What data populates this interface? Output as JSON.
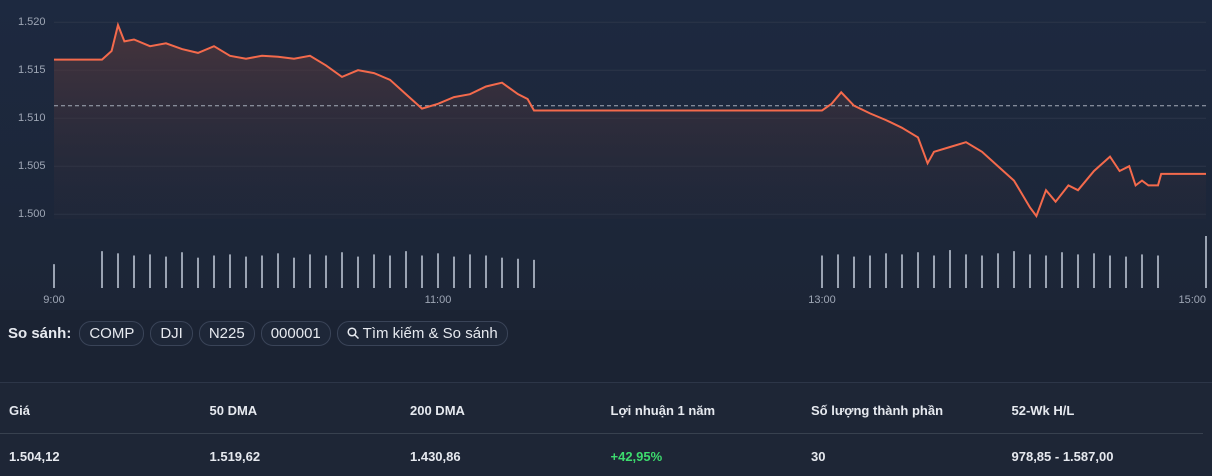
{
  "chart_data": {
    "type": "line",
    "x": [
      "9:00",
      "9:15",
      "9:18",
      "9:20",
      "9:22",
      "9:25",
      "9:30",
      "9:35",
      "9:40",
      "9:45",
      "9:50",
      "9:55",
      "10:00",
      "10:05",
      "10:10",
      "10:15",
      "10:20",
      "10:25",
      "10:30",
      "10:35",
      "10:40",
      "10:45",
      "10:50",
      "10:55",
      "11:00",
      "11:05",
      "11:10",
      "11:15",
      "11:20",
      "11:25",
      "11:28",
      "11:30",
      "13:00",
      "13:03",
      "13:06",
      "13:10",
      "13:15",
      "13:20",
      "13:25",
      "13:30",
      "13:33",
      "13:35",
      "13:40",
      "13:45",
      "13:50",
      "13:55",
      "14:00",
      "14:05",
      "14:07",
      "14:10",
      "14:13",
      "14:17",
      "14:20",
      "14:25",
      "14:30",
      "14:33",
      "14:36",
      "14:38",
      "14:40",
      "14:42",
      "14:45",
      "14:46",
      "15:00"
    ],
    "series": [
      {
        "color": "#f46a4c",
        "values": [
          1.5161,
          1.5161,
          1.517,
          1.5197,
          1.518,
          1.5182,
          1.5175,
          1.5178,
          1.5172,
          1.5168,
          1.5175,
          1.5165,
          1.5162,
          1.5165,
          1.5164,
          1.5162,
          1.5165,
          1.5155,
          1.5143,
          1.515,
          1.5147,
          1.514,
          1.5125,
          1.511,
          1.5115,
          1.5122,
          1.5125,
          1.5133,
          1.5137,
          1.5125,
          1.512,
          1.5108,
          1.5108,
          1.5115,
          1.5127,
          1.5113,
          1.5105,
          1.5098,
          1.509,
          1.508,
          1.5053,
          1.5065,
          1.507,
          1.5075,
          1.5065,
          1.505,
          1.5035,
          1.5007,
          1.4998,
          1.5025,
          1.5013,
          1.503,
          1.5025,
          1.5045,
          1.506,
          1.5045,
          1.505,
          1.503,
          1.5035,
          1.503,
          1.503,
          1.5042,
          1.5042
        ]
      }
    ],
    "reference_line": 1.5113,
    "xlim": [
      "9:00",
      "15:00"
    ],
    "xticks": [
      "9:00",
      "11:00",
      "13:00",
      "15:00"
    ],
    "ylim": [
      1.4995,
      1.522
    ],
    "yticks": [
      {
        "value": 1.5,
        "label": "1.500"
      },
      {
        "value": 1.505,
        "label": "1.505"
      },
      {
        "value": 1.51,
        "label": "1.510"
      },
      {
        "value": 1.515,
        "label": "1.515"
      },
      {
        "value": 1.52,
        "label": "1.520"
      }
    ],
    "grid": true,
    "volume": {
      "color": "#9aa3b2",
      "x": [
        "9:00",
        "9:15",
        "9:20",
        "9:25",
        "9:30",
        "9:35",
        "9:40",
        "9:45",
        "9:50",
        "9:55",
        "10:00",
        "10:05",
        "10:10",
        "10:15",
        "10:20",
        "10:25",
        "10:30",
        "10:35",
        "10:40",
        "10:45",
        "10:50",
        "10:55",
        "11:00",
        "11:05",
        "11:10",
        "11:15",
        "11:20",
        "11:25",
        "11:30",
        "13:00",
        "13:05",
        "13:10",
        "13:15",
        "13:20",
        "13:25",
        "13:30",
        "13:35",
        "13:40",
        "13:45",
        "13:50",
        "13:55",
        "14:00",
        "14:05",
        "14:10",
        "14:15",
        "14:20",
        "14:25",
        "14:30",
        "14:35",
        "14:40",
        "14:45",
        "15:00"
      ],
      "values": [
        22,
        34,
        32,
        30,
        31,
        29,
        33,
        28,
        30,
        31,
        29,
        30,
        32,
        28,
        31,
        30,
        33,
        29,
        31,
        30,
        34,
        30,
        32,
        29,
        31,
        30,
        28,
        27,
        26,
        30,
        31,
        29,
        30,
        32,
        31,
        33,
        30,
        35,
        31,
        30,
        32,
        34,
        31,
        30,
        33,
        31,
        32,
        30,
        29,
        31,
        30,
        48
      ]
    }
  },
  "compare": {
    "label": "So sánh:",
    "buttons": [
      "COMP",
      "DJI",
      "N225",
      "000001"
    ],
    "search": "Tìm kiếm & So sánh"
  },
  "stats": {
    "headers": [
      "Giá",
      "50 DMA",
      "200 DMA",
      "Lợi nhuận 1 năm",
      "Số lượng thành phần",
      "52-Wk H/L"
    ],
    "values": [
      "1.504,12",
      "1.519,62",
      "1.430,86",
      "+42,95%",
      "30",
      "978,85 - 1.587,00"
    ]
  }
}
